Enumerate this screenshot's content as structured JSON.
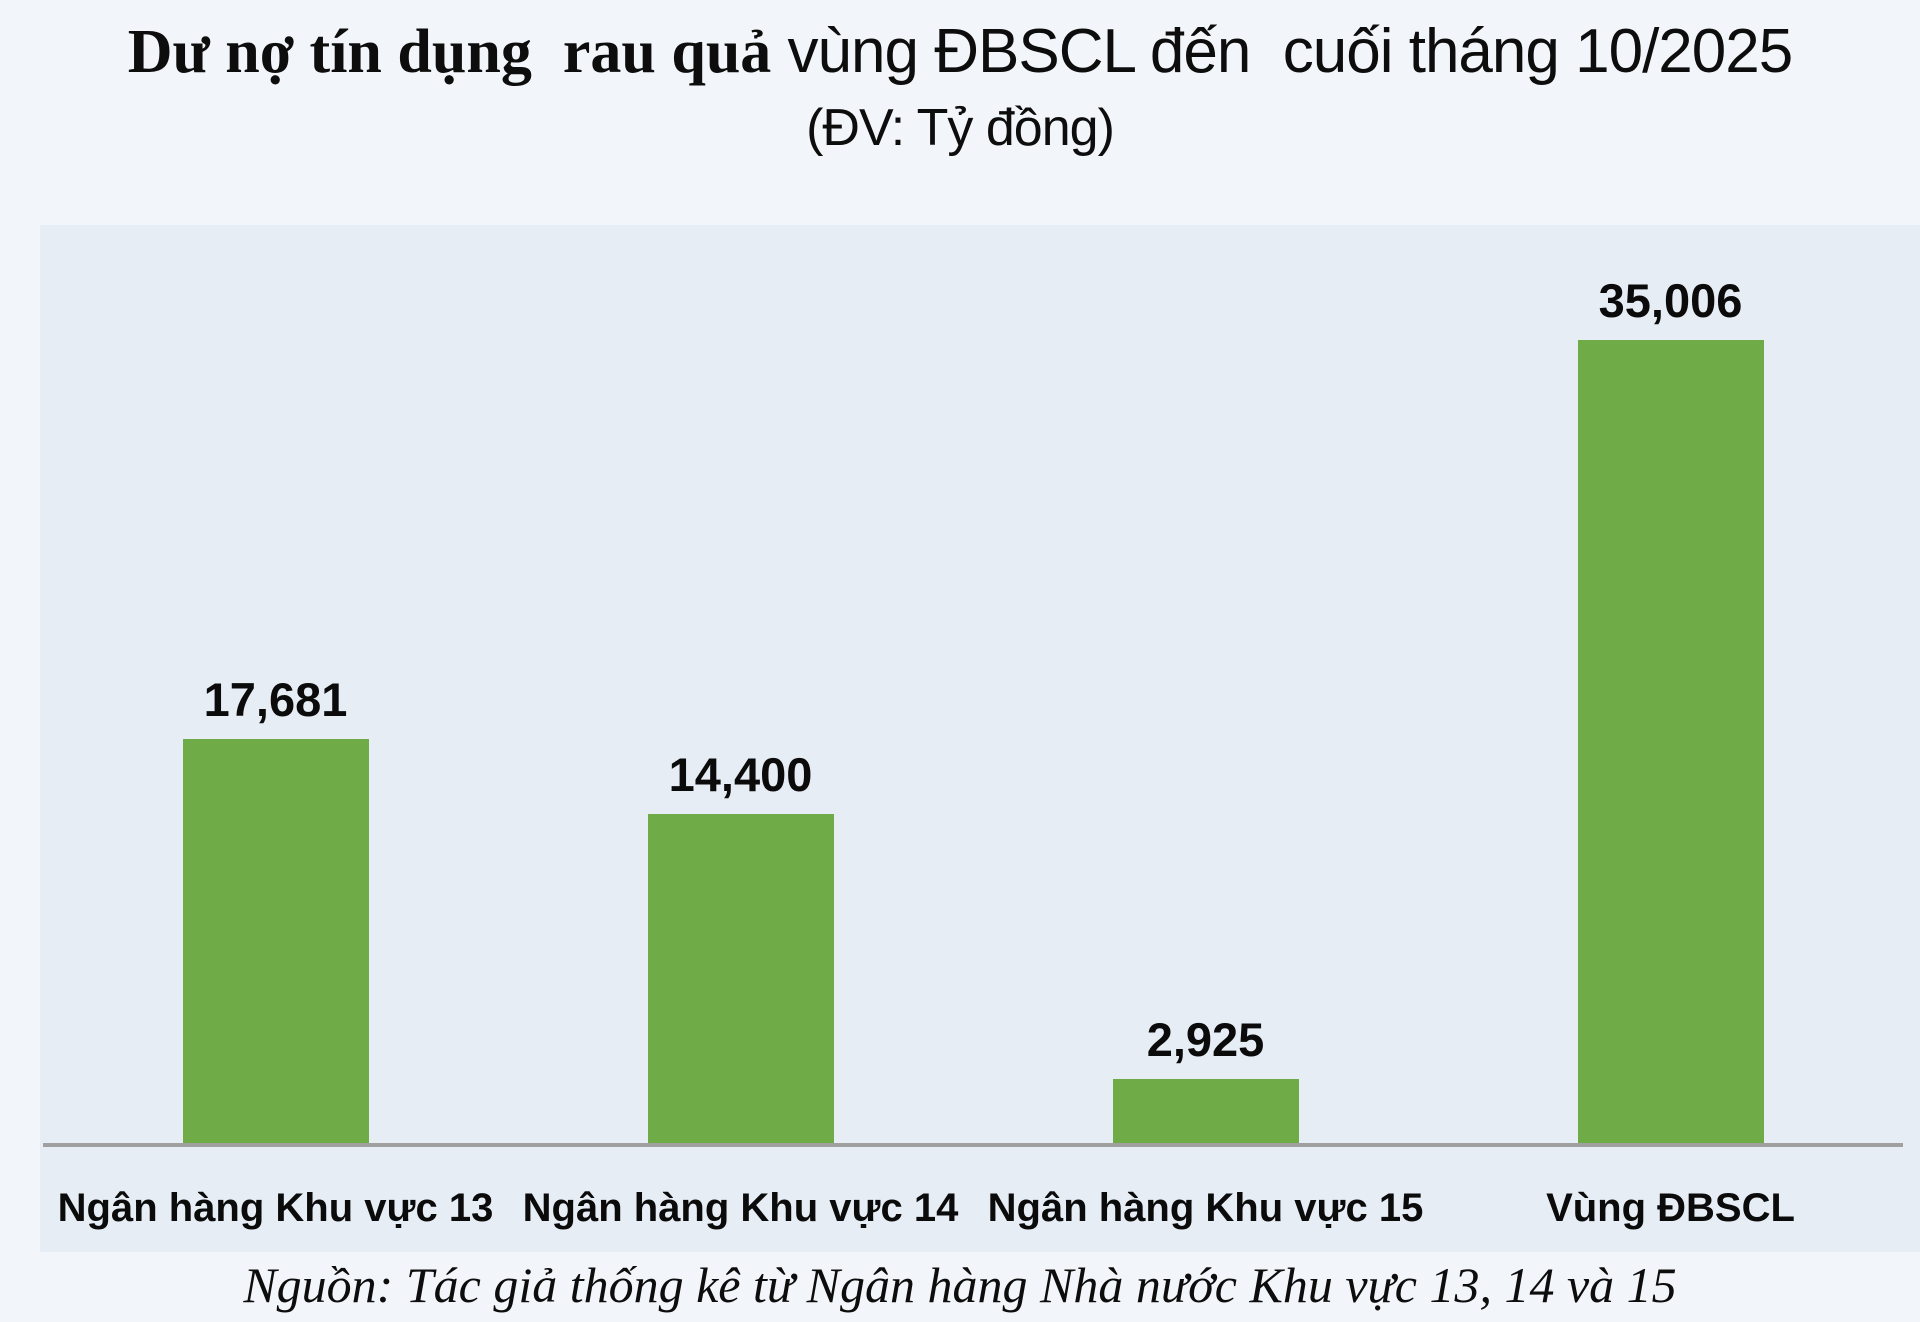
{
  "title": {
    "line1_serif": "Dư nợ tín dụng  rau quả",
    "line1_sans": " vùng ĐBSCL đến  cuối tháng 10/2025",
    "line2": "(ĐV: Tỷ đồng)"
  },
  "chart_data": {
    "type": "bar",
    "title": "Dư nợ tín dụng rau quả vùng ĐBSCL đến cuối tháng 10/2025",
    "unit_label": "(ĐV: Tỷ đồng)",
    "categories": [
      "Ngân hàng Khu vực 13",
      "Ngân hàng Khu vực 14",
      "Ngân hàng Khu vực 15",
      "Vùng ĐBSCL"
    ],
    "values": [
      17681,
      14400,
      2925,
      35006
    ],
    "value_labels": [
      "17,681",
      "14,400",
      "2,925",
      "35,006"
    ],
    "ylim": [
      0,
      35006
    ],
    "grid": false,
    "legend": "none",
    "bar_color": "#6FAC48",
    "axis_color": "#A0A0A0",
    "plot_bg_color": "#E7EDF5",
    "page_bg_color": "#F2F6FA"
  },
  "source": "Nguồn: Tác giả thống kê từ Ngân hàng Nhà nước Khu vực 13, 14 và 15"
}
